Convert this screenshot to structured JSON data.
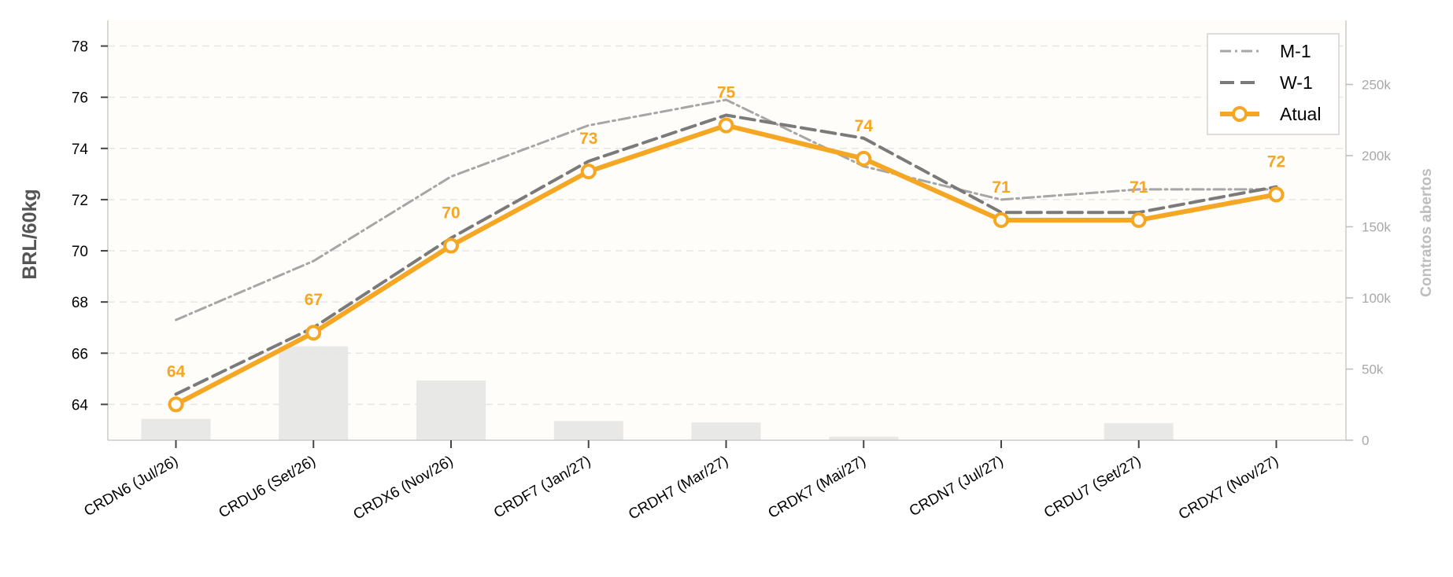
{
  "chart_data": {
    "type": "line",
    "categories": [
      "CRDN6 (Jul/26)",
      "CRDU6 (Set/26)",
      "CRDX6 (Nov/26)",
      "CRDF7 (Jan/27)",
      "CRDH7 (Mar/27)",
      "CRDK7 (Mai/27)",
      "CRDN7 (Jul/27)",
      "CRDU7 (Set/27)",
      "CRDX7 (Nov/27)"
    ],
    "series": [
      {
        "name": "M-1",
        "values": [
          67.3,
          69.6,
          72.9,
          74.9,
          75.9,
          73.3,
          72.0,
          72.4,
          72.4
        ],
        "color": "#a6a6a6",
        "style": "dashed-thin"
      },
      {
        "name": "W-1",
        "values": [
          64.4,
          67.0,
          70.5,
          73.5,
          75.3,
          74.4,
          71.5,
          71.5,
          72.5
        ],
        "color": "#7a7a7a",
        "style": "dashed"
      },
      {
        "name": "Atual",
        "values": [
          64.0,
          66.8,
          70.2,
          73.1,
          74.9,
          73.6,
          71.2,
          71.2,
          72.2
        ],
        "color": "#f5a623",
        "style": "solid-markers"
      }
    ],
    "data_labels": [
      "64",
      "67",
      "70",
      "73",
      "75",
      "74",
      "71",
      "71",
      "72"
    ],
    "open_interest": {
      "values": [
        15000,
        66000,
        42000,
        13500,
        12500,
        2500,
        0,
        12000,
        0
      ],
      "color": "#e8e8e6"
    },
    "ylabel": "BRL/60kg",
    "y2label": "Contratos abertos",
    "ylim": [
      62.6,
      79.0
    ],
    "y2lim": [
      0,
      295000
    ],
    "yticks": [
      "64",
      "66",
      "68",
      "70",
      "72",
      "74",
      "76",
      "78"
    ],
    "y2ticks": [
      "0",
      "50k",
      "100k",
      "150k",
      "200k",
      "250k"
    ],
    "grid": true,
    "legend": {
      "position": "top-right",
      "entries": [
        "M-1",
        "W-1",
        "Atual"
      ]
    }
  }
}
